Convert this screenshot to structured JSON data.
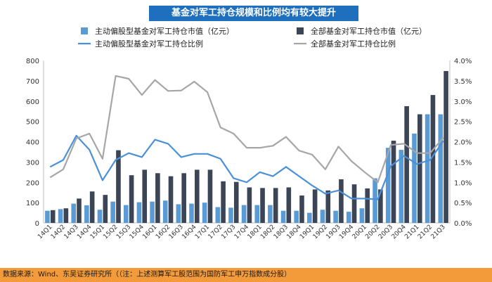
{
  "chart_data": {
    "type": "bar+line",
    "title": "基金对军工持仓规模和比例均有较大提升",
    "categories": [
      "14Q1",
      "14Q2",
      "14Q3",
      "14Q4",
      "15Q1",
      "15Q2",
      "15Q3",
      "15Q4",
      "16Q1",
      "16Q2",
      "16Q3",
      "16Q4",
      "17Q1",
      "17Q2",
      "17Q3",
      "17Q4",
      "18Q1",
      "18Q2",
      "18Q3",
      "18Q4",
      "19Q1",
      "19Q2",
      "19Q3",
      "19Q4",
      "20Q1",
      "20Q2",
      "20Q3",
      "20Q4",
      "21Q1",
      "21Q2",
      "21Q3"
    ],
    "y_left": {
      "min": 0,
      "max": 800,
      "ticks": [
        "0",
        "100",
        "200",
        "300",
        "400",
        "500",
        "600",
        "700",
        "800"
      ]
    },
    "y_right": {
      "min": 0,
      "max": 4.0,
      "ticks": [
        "0.0%",
        "0.5%",
        "1.0%",
        "1.5%",
        "2.0%",
        "2.5%",
        "3.0%",
        "3.5%",
        "4.0%"
      ]
    },
    "series": [
      {
        "name": "主动偏股型基金对军工持仓市值（亿元）",
        "type": "bar",
        "axis": "left",
        "color": "#5b9bd5",
        "values": [
          60,
          68,
          95,
          87,
          65,
          105,
          88,
          102,
          105,
          110,
          92,
          95,
          100,
          78,
          75,
          88,
          88,
          88,
          60,
          60,
          50,
          65,
          60,
          55,
          72,
          220,
          370,
          360,
          440,
          535,
          535
        ]
      },
      {
        "name": "全部基金对军工持仓市值（亿元）",
        "type": "bar",
        "axis": "left",
        "color": "#3b4556",
        "values": [
          63,
          72,
          120,
          155,
          138,
          358,
          235,
          262,
          245,
          230,
          245,
          262,
          262,
          205,
          202,
          175,
          172,
          172,
          175,
          135,
          165,
          160,
          215,
          190,
          170,
          165,
          405,
          575,
          535,
          630,
          748
        ]
      },
      {
        "name": "主动偏股型基金对军工持仓比例",
        "type": "line",
        "axis": "right",
        "color": "#4a90d9",
        "values": [
          1.38,
          1.55,
          2.15,
          1.8,
          1.05,
          1.55,
          1.72,
          1.62,
          2.05,
          1.95,
          1.62,
          1.7,
          1.7,
          1.58,
          1.1,
          1.0,
          1.25,
          1.15,
          1.38,
          1.15,
          0.92,
          0.72,
          0.8,
          0.6,
          0.6,
          0.58,
          1.4,
          1.65,
          1.45,
          1.55,
          2.02
        ]
      },
      {
        "name": "全部基金对军工持仓比例",
        "type": "line",
        "axis": "right",
        "color": "#a6a6a6",
        "values": [
          1.12,
          1.32,
          2.08,
          2.2,
          1.58,
          3.62,
          3.55,
          3.15,
          3.52,
          3.25,
          3.26,
          3.48,
          3.22,
          2.35,
          2.2,
          1.85,
          1.85,
          1.9,
          2.12,
          1.78,
          1.68,
          1.32,
          1.88,
          1.52,
          1.25,
          1.0,
          1.92,
          1.95,
          1.72,
          1.72,
          2.1
        ]
      }
    ]
  },
  "footer": {
    "text": "数据来源：Wind、东吴证券研究所（（注：上述测算军工股范围为国防军工申万指数成分股）"
  }
}
